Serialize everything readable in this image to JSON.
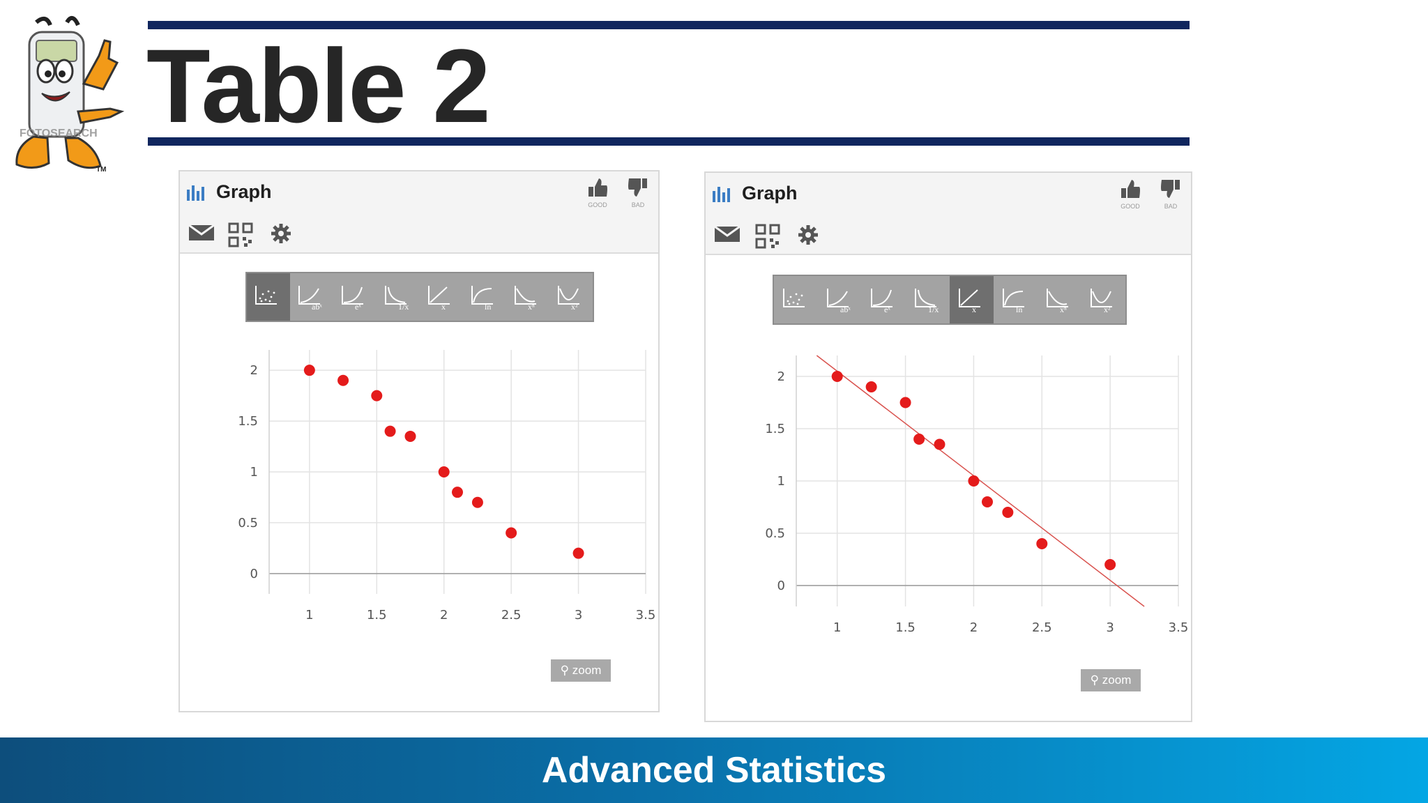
{
  "slide": {
    "title": "Table 2",
    "footer": "Advanced Statistics",
    "mascot_watermark": "FOTOSEARCH",
    "mascot_tm": "TM"
  },
  "colors": {
    "rule": "#10265e",
    "title": "#262626",
    "footer_from": "#0d4e7c",
    "footer_to": "#04a6e4",
    "point": "#e41b1b",
    "fit_line": "#d9534f"
  },
  "widgets": [
    {
      "title": "Graph",
      "good_label": "GOOD",
      "bad_label": "BAD",
      "zoom_label": "zoom",
      "icons": [
        "graph-icon",
        "thumbs-up-icon",
        "thumbs-down-icon",
        "email-icon",
        "qr-code-icon",
        "gear-icon",
        "zoom-icon"
      ],
      "fit_options": [
        "scatter",
        "power",
        "exponential",
        "reciprocal",
        "linear",
        "logarithmic",
        "power-series",
        "quadratic"
      ],
      "selected_fit": "scatter"
    },
    {
      "title": "Graph",
      "good_label": "GOOD",
      "bad_label": "BAD",
      "zoom_label": "zoom",
      "icons": [
        "graph-icon",
        "thumbs-up-icon",
        "thumbs-down-icon",
        "email-icon",
        "qr-code-icon",
        "gear-icon",
        "zoom-icon"
      ],
      "fit_options": [
        "scatter",
        "power",
        "exponential",
        "reciprocal",
        "linear",
        "logarithmic",
        "power-series",
        "quadratic"
      ],
      "selected_fit": "linear"
    }
  ],
  "chart_data": [
    {
      "type": "scatter",
      "x": [
        1,
        1.25,
        1.5,
        1.6,
        1.75,
        2,
        2.1,
        2.25,
        2.5,
        3
      ],
      "y": [
        2,
        1.9,
        1.75,
        1.4,
        1.35,
        1,
        0.8,
        0.7,
        0.4,
        0.2
      ],
      "x_ticks": [
        "1",
        "1.5",
        "2",
        "2.5",
        "3",
        "3.5"
      ],
      "y_ticks": [
        "2",
        "1.5",
        "1",
        "0.5",
        "0"
      ],
      "xlim": [
        0.7,
        3.5
      ],
      "ylim": [
        -0.2,
        2.2
      ],
      "grid": true,
      "trendline": null
    },
    {
      "type": "scatter",
      "x": [
        1,
        1.25,
        1.5,
        1.6,
        1.75,
        2,
        2.1,
        2.25,
        2.5,
        3
      ],
      "y": [
        2,
        1.9,
        1.75,
        1.4,
        1.35,
        1,
        0.8,
        0.7,
        0.4,
        0.2
      ],
      "x_ticks": [
        "1",
        "1.5",
        "2",
        "2.5",
        "3",
        "3.5"
      ],
      "y_ticks": [
        "2",
        "1.5",
        "1",
        "0.5",
        "0"
      ],
      "xlim": [
        0.7,
        3.5
      ],
      "ylim": [
        -0.2,
        2.2
      ],
      "grid": true,
      "trendline": {
        "type": "linear",
        "slope": -1.0,
        "intercept": 3.05
      }
    }
  ]
}
